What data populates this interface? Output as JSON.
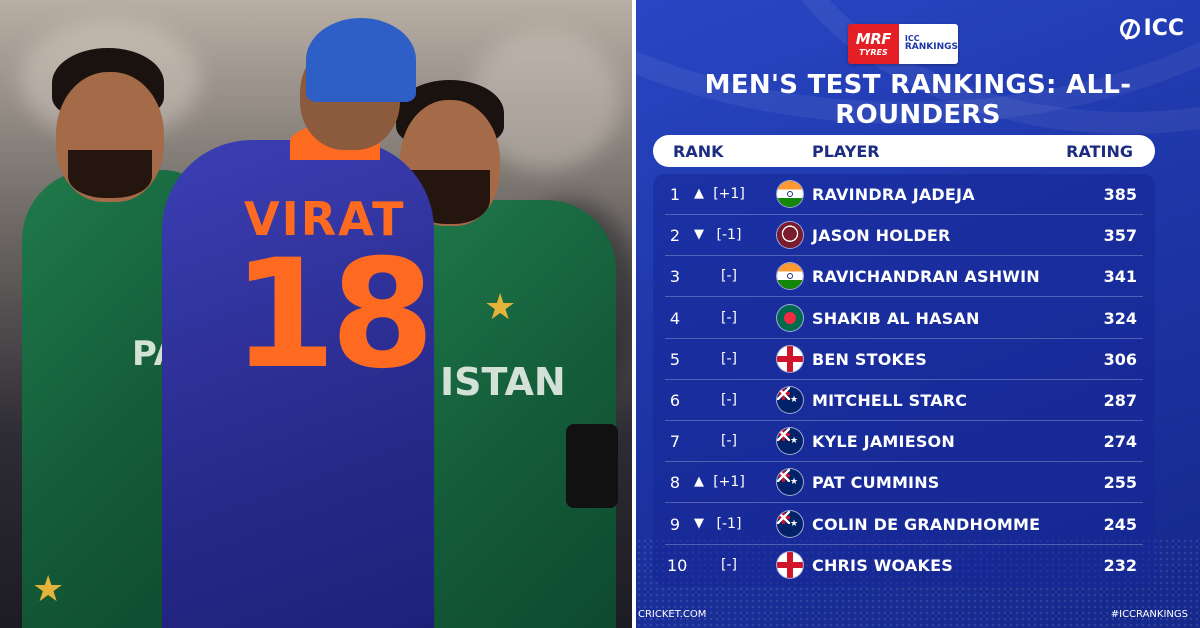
{
  "photo": {
    "jersey_name": "VIRAT",
    "jersey_number": "18",
    "left_shirt_text": "PA",
    "right_shirt_text": "ISTAN"
  },
  "badge": {
    "sponsor_line1": "MRF",
    "sponsor_line2": "TYRES",
    "rankings_line1": "ICC",
    "rankings_line2": "RANKINGS"
  },
  "brand": {
    "logo_text": "ICC"
  },
  "title": "MEN'S TEST RANKINGS: ALL-ROUNDERS",
  "table": {
    "headers": {
      "rank": "RANK",
      "player": "PLAYER",
      "rating": "RATING"
    },
    "rows": [
      {
        "rank": "1",
        "arrow": "▲",
        "change": "[+1]",
        "flag": "india",
        "player": "RAVINDRA JADEJA",
        "rating": "385"
      },
      {
        "rank": "2",
        "arrow": "▼",
        "change": "[-1]",
        "flag": "west-indies",
        "player": "JASON HOLDER",
        "rating": "357"
      },
      {
        "rank": "3",
        "arrow": "",
        "change": "[-]",
        "flag": "india",
        "player": "RAVICHANDRAN ASHWIN",
        "rating": "341"
      },
      {
        "rank": "4",
        "arrow": "",
        "change": "[-]",
        "flag": "bangladesh",
        "player": "SHAKIB AL HASAN",
        "rating": "324"
      },
      {
        "rank": "5",
        "arrow": "",
        "change": "[-]",
        "flag": "england",
        "player": "BEN STOKES",
        "rating": "306"
      },
      {
        "rank": "6",
        "arrow": "",
        "change": "[-]",
        "flag": "australia",
        "player": "MITCHELL STARC",
        "rating": "287"
      },
      {
        "rank": "7",
        "arrow": "",
        "change": "[-]",
        "flag": "new-zealand",
        "player": "KYLE JAMIESON",
        "rating": "274"
      },
      {
        "rank": "8",
        "arrow": "▲",
        "change": "[+1]",
        "flag": "australia",
        "player": "PAT CUMMINS",
        "rating": "255"
      },
      {
        "rank": "9",
        "arrow": "▼",
        "change": "[-1]",
        "flag": "new-zealand",
        "player": "COLIN DE GRANDHOMME",
        "rating": "245"
      },
      {
        "rank": "10",
        "arrow": "",
        "change": "[-]",
        "flag": "england",
        "player": "CHRIS WOAKES",
        "rating": "232"
      }
    ]
  },
  "footer": {
    "left": "CRICKET.COM",
    "right": "#ICCRANKINGS"
  },
  "colors": {
    "panel_blue": "#1e36a8",
    "pak_green": "#1f7a4b",
    "india_blue": "#2a2c8f",
    "jersey_orange": "#ff6a21"
  }
}
